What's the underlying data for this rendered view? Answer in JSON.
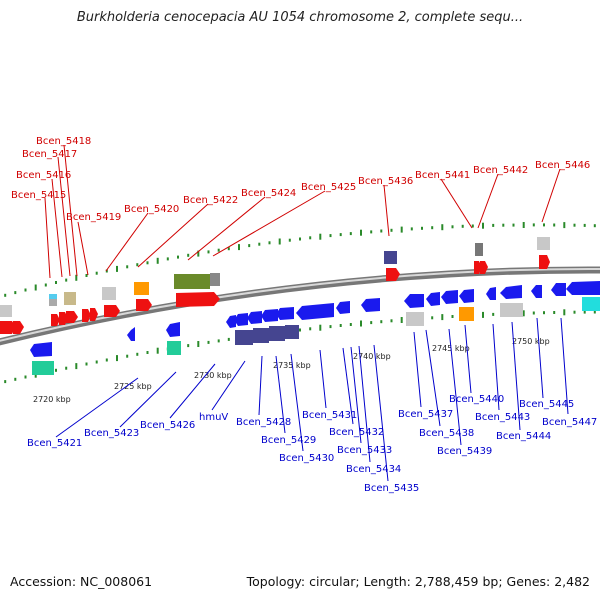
{
  "title": "Burkholderia cenocepacia AU 1054 chromosome 2, complete sequ...",
  "footer": {
    "accession": "Accession: NC_008061",
    "summary": "Topology: circular; Length: 2,788,459 bp; Genes: 2,482"
  },
  "colors": {
    "forward_label": "#d00000",
    "reverse_label": "#0000cc",
    "forward_gene": "#ee1111",
    "reverse_gene": "#1a1aee",
    "tick": "#2a8a2a",
    "backbone": "#8a8a8a"
  },
  "scale_labels": [
    "2720 kbp",
    "2725 kbp",
    "2730 kbp",
    "2735 kbp",
    "2740 kbp",
    "2745 kbp",
    "2750 kbp"
  ],
  "forward_labels": [
    "Bcen_5418",
    "Bcen_5417",
    "Bcen_5416",
    "Bcen_5415",
    "Bcen_5419",
    "Bcen_5420",
    "Bcen_5422",
    "Bcen_5424",
    "Bcen_5425",
    "Bcen_5436",
    "Bcen_5441",
    "Bcen_5442",
    "Bcen_5446"
  ],
  "reverse_labels": [
    "Bcen_5421",
    "Bcen_5423",
    "Bcen_5426",
    "hmuV",
    "Bcen_5428",
    "Bcen_5429",
    "Bcen_5430",
    "Bcen_5431",
    "Bcen_5432",
    "Bcen_5433",
    "Bcen_5434",
    "Bcen_5435",
    "Bcen_5437",
    "Bcen_5438",
    "Bcen_5439",
    "Bcen_5440",
    "Bcen_5443",
    "Bcen_5444",
    "Bcen_5445",
    "Bcen_5447"
  ]
}
